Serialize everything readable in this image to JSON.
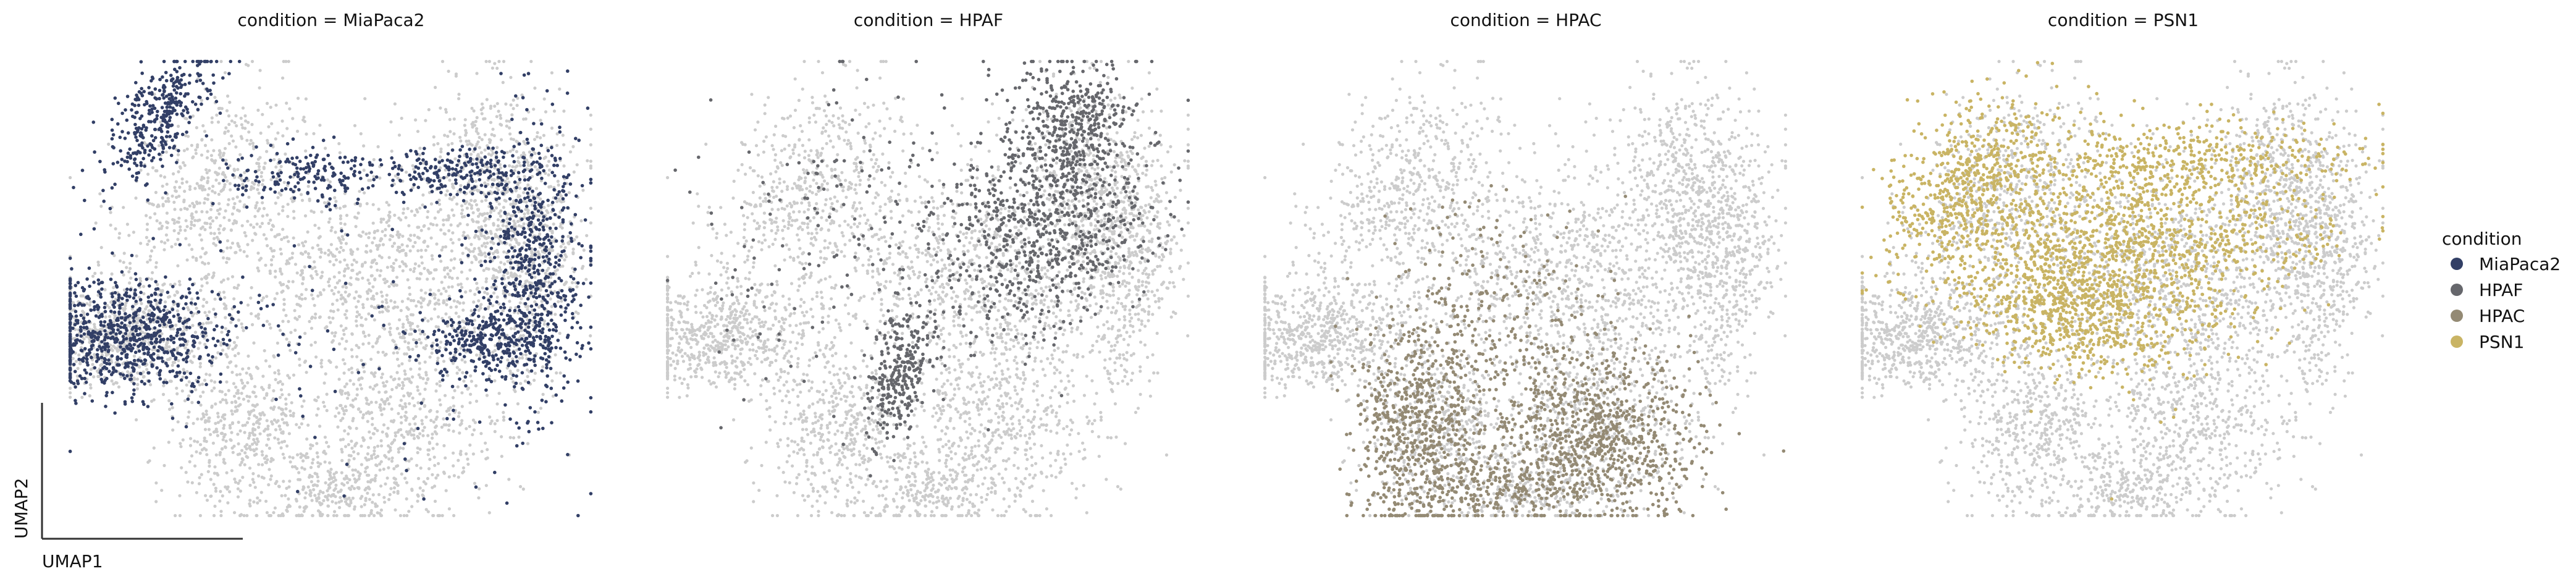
{
  "chart_data": {
    "type": "scatter",
    "embedding": "UMAP",
    "xlabel": "UMAP1",
    "ylabel": "UMAP2",
    "background_color": "#cccccc",
    "panel_titles": [
      "condition = MiaPaca2",
      "condition = HPAF",
      "condition = HPAC",
      "condition = PSN1"
    ],
    "legend": {
      "title": "condition",
      "position": "right",
      "entries": [
        {
          "label": "MiaPaca2",
          "color": "#323f66"
        },
        {
          "label": "HPAF",
          "color": "#66676c"
        },
        {
          "label": "HPAC",
          "color": "#948a74"
        },
        {
          "label": "PSN1",
          "color": "#c9b464"
        }
      ]
    },
    "clusters": [
      {
        "name": "upper-left-arm",
        "center": [
          0.27,
          0.27
        ],
        "spread": [
          0.07,
          0.12
        ],
        "rot": 0.55,
        "n": 450
      },
      {
        "name": "left-lobe",
        "center": [
          0.11,
          0.6
        ],
        "spread": [
          0.09,
          0.06
        ],
        "rot": 0.0,
        "n": 650
      },
      {
        "name": "top-right-lobe",
        "center": [
          0.8,
          0.27
        ],
        "spread": [
          0.07,
          0.11
        ],
        "rot": 0.0,
        "n": 500
      },
      {
        "name": "right-edge",
        "center": [
          0.87,
          0.45
        ],
        "spread": [
          0.05,
          0.15
        ],
        "rot": 0.0,
        "n": 500
      },
      {
        "name": "center-band",
        "center": [
          0.55,
          0.45
        ],
        "spread": [
          0.15,
          0.11
        ],
        "rot": 0.35,
        "n": 900
      },
      {
        "name": "lower-left",
        "center": [
          0.33,
          0.8
        ],
        "spread": [
          0.07,
          0.1
        ],
        "rot": 0.0,
        "n": 500
      },
      {
        "name": "lower-right",
        "center": [
          0.64,
          0.78
        ],
        "spread": [
          0.09,
          0.11
        ],
        "rot": 0.0,
        "n": 600
      },
      {
        "name": "bottom-center",
        "center": [
          0.5,
          0.93
        ],
        "spread": [
          0.06,
          0.04
        ],
        "rot": 0.0,
        "n": 220
      }
    ],
    "highlights": [
      {
        "panel": 0,
        "label": "MiaPaca2",
        "color": "#323f66",
        "regions": [
          {
            "center": [
              0.18,
              0.13
            ],
            "spread": [
              0.035,
              0.08
            ],
            "rot": 0.5,
            "n": 350
          },
          {
            "center": [
              0.12,
              0.6
            ],
            "spread": [
              0.09,
              0.06
            ],
            "rot": 0.0,
            "n": 750
          },
          {
            "center": [
              0.88,
              0.45
            ],
            "spread": [
              0.045,
              0.15
            ],
            "rot": 0.0,
            "n": 600
          },
          {
            "center": [
              0.72,
              0.25
            ],
            "spread": [
              0.08,
              0.025
            ],
            "rot": 0.0,
            "n": 220
          },
          {
            "center": [
              0.8,
              0.62
            ],
            "spread": [
              0.06,
              0.04
            ],
            "rot": 0.0,
            "n": 300
          },
          {
            "center": [
              0.45,
              0.25
            ],
            "spread": [
              0.07,
              0.03
            ],
            "rot": 0.0,
            "n": 150
          },
          {
            "center": [
              0.5,
              0.5
            ],
            "spread": [
              0.25,
              0.22
            ],
            "rot": 0.0,
            "n": 120
          }
        ]
      },
      {
        "panel": 1,
        "label": "HPAF",
        "color": "#66676c",
        "regions": [
          {
            "center": [
              0.78,
              0.13
            ],
            "spread": [
              0.05,
              0.06
            ],
            "rot": 0.0,
            "n": 280
          },
          {
            "center": [
              0.72,
              0.35
            ],
            "spread": [
              0.09,
              0.13
            ],
            "rot": 0.3,
            "n": 900
          },
          {
            "center": [
              0.45,
              0.68
            ],
            "spread": [
              0.03,
              0.07
            ],
            "rot": 0.2,
            "n": 300
          },
          {
            "center": [
              0.35,
              0.35
            ],
            "spread": [
              0.13,
              0.18
            ],
            "rot": 0.7,
            "n": 160
          }
        ]
      },
      {
        "panel": 2,
        "label": "HPAC",
        "color": "#948a74",
        "regions": [
          {
            "center": [
              0.3,
              0.8
            ],
            "spread": [
              0.06,
              0.12
            ],
            "rot": 0.0,
            "n": 700
          },
          {
            "center": [
              0.63,
              0.82
            ],
            "spread": [
              0.1,
              0.09
            ],
            "rot": 0.0,
            "n": 900
          },
          {
            "center": [
              0.45,
              0.55
            ],
            "spread": [
              0.1,
              0.12
            ],
            "rot": 0.0,
            "n": 250
          },
          {
            "center": [
              0.45,
              0.93
            ],
            "spread": [
              0.08,
              0.03
            ],
            "rot": 0.0,
            "n": 200
          }
        ]
      },
      {
        "panel": 3,
        "label": "PSN1",
        "color": "#c9b464",
        "regions": [
          {
            "center": [
              0.2,
              0.28
            ],
            "spread": [
              0.06,
              0.11
            ],
            "rot": 0.55,
            "n": 550
          },
          {
            "center": [
              0.45,
              0.45
            ],
            "spread": [
              0.14,
              0.1
            ],
            "rot": 0.5,
            "n": 1100
          },
          {
            "center": [
              0.62,
              0.23
            ],
            "spread": [
              0.16,
              0.05
            ],
            "rot": 0.0,
            "n": 500
          },
          {
            "center": [
              0.36,
              0.55
            ],
            "spread": [
              0.09,
              0.06
            ],
            "rot": 0.3,
            "n": 400
          },
          {
            "center": [
              0.7,
              0.38
            ],
            "spread": [
              0.12,
              0.06
            ],
            "rot": 0.0,
            "n": 300
          }
        ]
      }
    ]
  }
}
